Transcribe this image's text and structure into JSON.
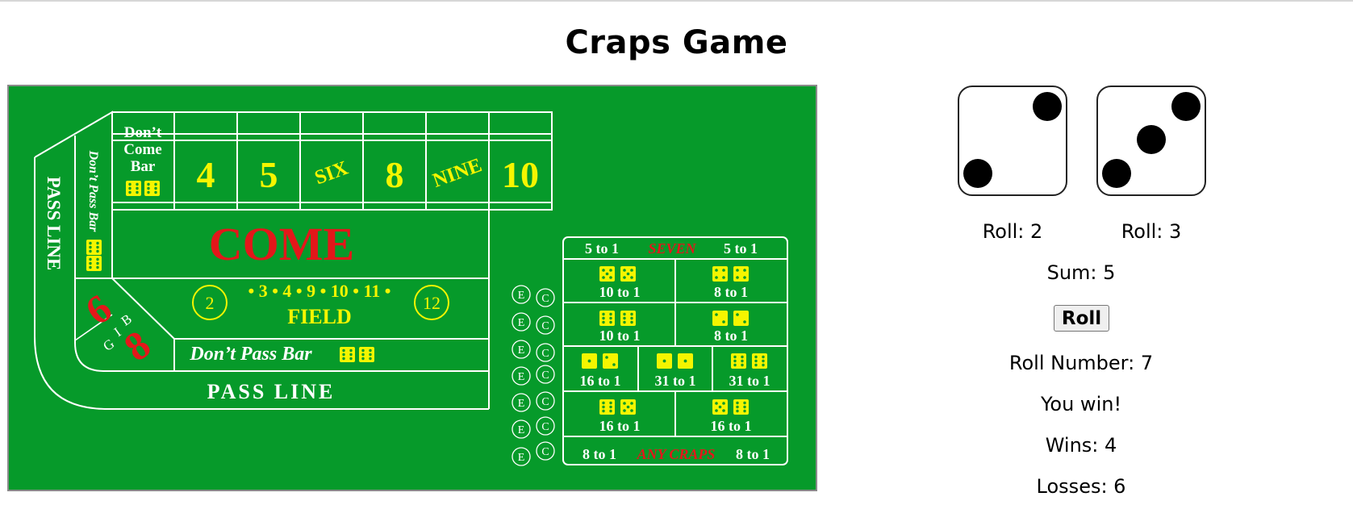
{
  "page": {
    "title": "Craps Game"
  },
  "board": {
    "pass_line_side": "PASS LINE",
    "dont_pass_bar_side": "Don’t Pass Bar",
    "dont_come_bar": [
      "Don’t",
      "Come",
      "Bar"
    ],
    "place_numbers": [
      "4",
      "5",
      "SIX",
      "8",
      "NINE",
      "10"
    ],
    "come": "COME",
    "field_circle_2": "2",
    "field_numbers": "• 3 • 4 • 9 • 10 • 11 •",
    "field_circle_12": "12",
    "field": "FIELD",
    "big6": "6",
    "big8": "8",
    "big_letters": [
      "B",
      "I",
      "G"
    ],
    "dont_pass_bar": "Don’t Pass Bar",
    "pass_line": "PASS LINE",
    "props": {
      "seven_left": "5 to 1",
      "seven": "SEVEN",
      "seven_right": "5 to 1",
      "hard_row1": [
        "10 to 1",
        "8 to 1"
      ],
      "hard_row2": [
        "10 to 1",
        "8 to 1"
      ],
      "row3": [
        "16 to 1",
        "31 to 1",
        "31 to 1"
      ],
      "row4": [
        "16 to 1",
        "16 to 1"
      ],
      "craps_left": "8 to 1",
      "any_craps": "ANY CRAPS",
      "craps_right": "8 to 1"
    },
    "ce": {
      "e": "E",
      "c": "C"
    },
    "colors": {
      "felt": "#069a2a",
      "yellow": "#f5f500",
      "red": "#e3171a",
      "white": "#ffffff"
    }
  },
  "dice": [
    {
      "value": 2,
      "label": "Roll: 2"
    },
    {
      "value": 3,
      "label": "Roll: 3"
    }
  ],
  "sum_label": "Sum: 5",
  "roll_button": "Roll",
  "roll_number_label": "Roll Number: 7",
  "result": "You win!",
  "wins_label": "Wins: 4",
  "losses_label": "Losses: 6"
}
